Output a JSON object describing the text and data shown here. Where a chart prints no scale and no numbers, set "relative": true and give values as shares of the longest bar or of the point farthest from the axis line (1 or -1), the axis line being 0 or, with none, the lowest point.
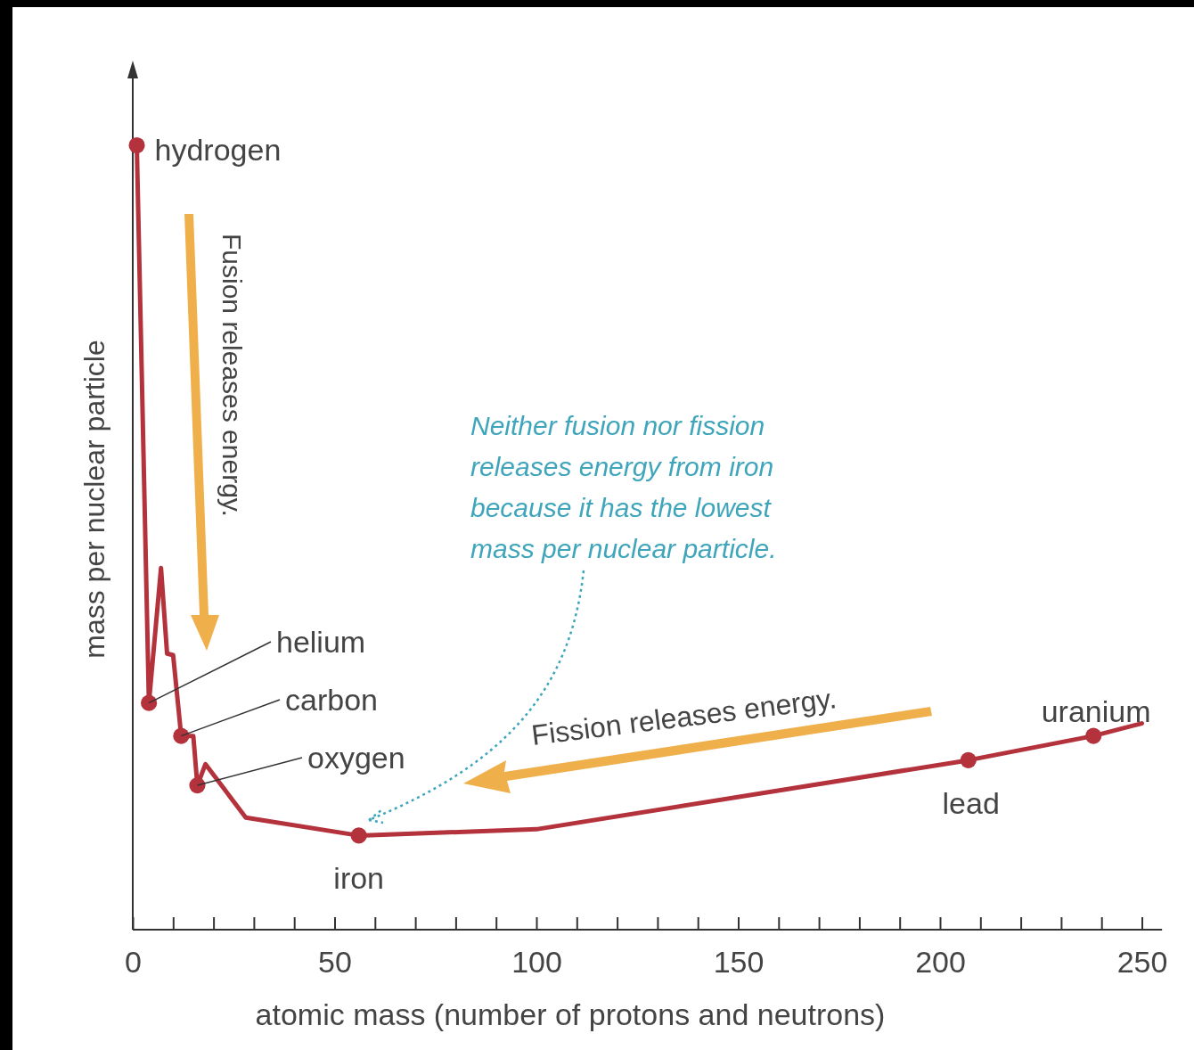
{
  "chart_data": {
    "type": "line",
    "relative": true,
    "xlabel": "atomic mass (number of protons and neutrons)",
    "ylabel": "mass per nuclear particle",
    "xlim": [
      0,
      255
    ],
    "xticks": [
      0,
      {
        "value": 10,
        "label": null
      },
      {
        "value": 20,
        "label": null
      },
      {
        "value": 30,
        "label": null
      },
      {
        "value": 40,
        "label": null
      },
      50,
      {
        "value": 60,
        "label": null
      },
      {
        "value": 70,
        "label": null
      },
      {
        "value": 80,
        "label": null
      },
      {
        "value": 90,
        "label": null
      },
      100,
      {
        "value": 110,
        "label": null
      },
      {
        "value": 120,
        "label": null
      },
      {
        "value": 130,
        "label": null
      },
      {
        "value": 140,
        "label": null
      },
      150,
      {
        "value": 160,
        "label": null
      },
      {
        "value": 170,
        "label": null
      },
      {
        "value": 180,
        "label": null
      },
      {
        "value": 190,
        "label": null
      },
      200,
      {
        "value": 210,
        "label": null
      },
      {
        "value": 220,
        "label": null
      },
      {
        "value": 230,
        "label": null
      },
      {
        "value": 240,
        "label": null
      },
      250
    ],
    "grid": false,
    "series": [
      {
        "type": "line",
        "color": "#b3323c",
        "marker": "none",
        "x": [
          1,
          4,
          7,
          8.5,
          10,
          12,
          15,
          16,
          18,
          28,
          56,
          100,
          207,
          238,
          250
        ],
        "values": [
          1,
          0.289,
          0.461,
          0.352,
          0.35,
          0.247,
          0.247,
          0.184,
          0.211,
          0.143,
          0.12,
          0.128,
          0.216,
          0.247,
          0.263
        ]
      },
      {
        "type": "scatter",
        "color": "#b3323c",
        "marker": "circle",
        "x": [
          1,
          4,
          12,
          16,
          56,
          207,
          238
        ],
        "values": [
          1,
          0.289,
          0.247,
          0.184,
          0.12,
          0.216,
          0.247
        ]
      }
    ],
    "annotations": [
      {
        "text": "hydrogen",
        "x": 1,
        "y": 1
      },
      {
        "text": "helium",
        "x": 4,
        "y": 0.289
      },
      {
        "text": "carbon",
        "x": 12,
        "y": 0.247
      },
      {
        "text": "oxygen",
        "x": 16,
        "y": 0.184
      },
      {
        "text": "iron",
        "x": 56,
        "y": 0.12
      },
      {
        "text": "lead",
        "x": 207,
        "y": 0.216
      },
      {
        "text": "uranium",
        "x": 238,
        "y": 0.247
      },
      "Fusion releases energy.",
      "Fission releases energy.",
      "Neither fusion nor fission releases energy from iron because it has the lowest mass per nuclear particle."
    ]
  }
}
